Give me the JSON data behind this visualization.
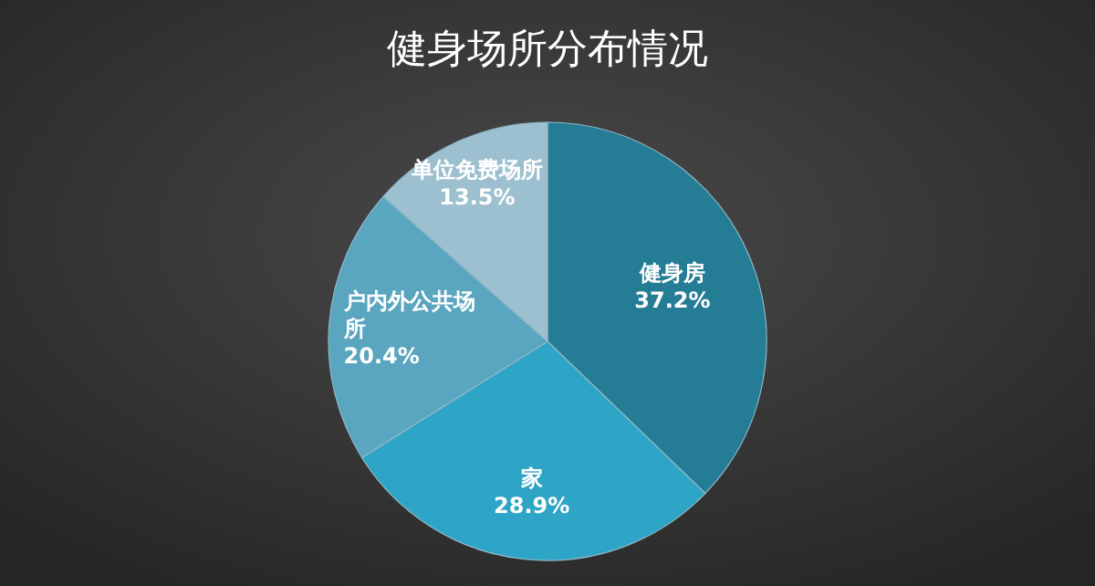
{
  "chart_data": {
    "type": "pie",
    "title": "健身场所分布情况",
    "categories": [
      "健身房",
      "家",
      "户内外公共场所",
      "单位免费场所"
    ],
    "values": [
      37.2,
      28.9,
      20.4,
      13.5
    ],
    "value_labels": [
      "37.2%",
      "28.9%",
      "20.4%",
      "13.5%"
    ],
    "colors": [
      "#247c95",
      "#2ea5c6",
      "#5aa5bf",
      "#9cc0cf"
    ]
  }
}
